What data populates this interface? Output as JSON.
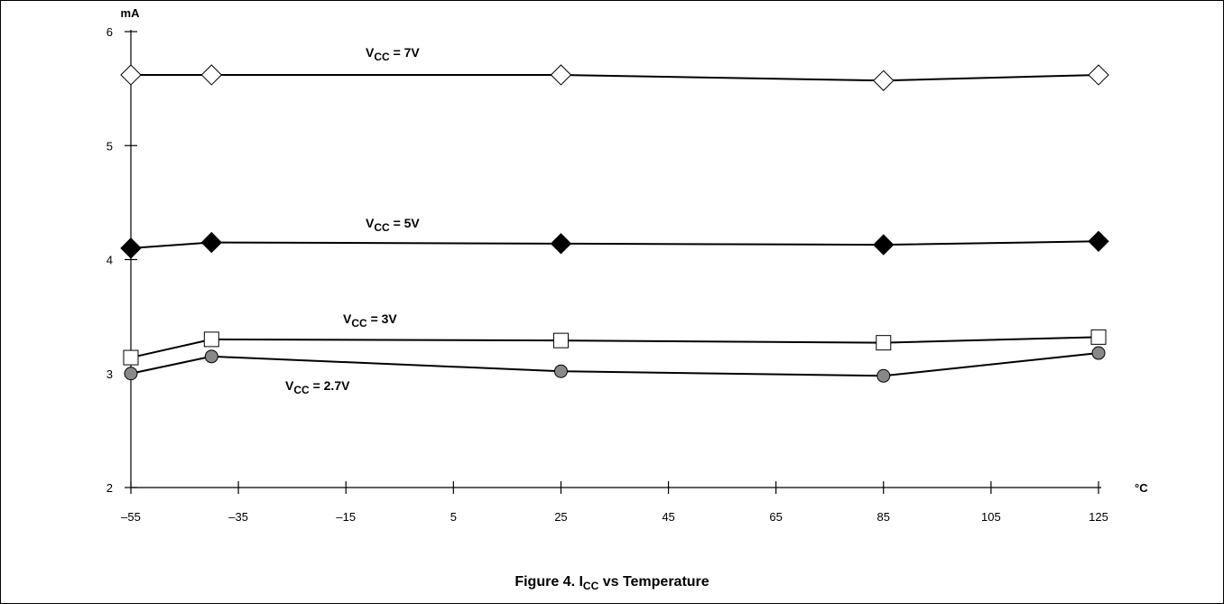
{
  "caption": {
    "prefix": "Figure 4.  I",
    "subscript": "CC",
    "suffix": " vs Temperature"
  },
  "chart_data": {
    "type": "line",
    "ylabel": "mA",
    "xlabel": "°C",
    "xlim": [
      -55,
      125
    ],
    "ylim": [
      2,
      6
    ],
    "x_ticks": [
      "–55",
      "–35",
      "–15",
      "5",
      "25",
      "45",
      "65",
      "85",
      "105",
      "125"
    ],
    "y_ticks": [
      "2",
      "3",
      "4",
      "5",
      "6"
    ],
    "grid": false,
    "x": [
      -55,
      -40,
      25,
      85,
      125
    ],
    "series": [
      {
        "name": "VCC = 7V",
        "label": {
          "main": "V",
          "sub": "CC",
          "rest": " = 7V"
        },
        "marker": "diamond-open",
        "values": [
          5.62,
          5.62,
          5.62,
          5.57,
          5.62
        ]
      },
      {
        "name": "VCC = 5V",
        "label": {
          "main": "V",
          "sub": "CC",
          "rest": " = 5V"
        },
        "marker": "diamond-filled",
        "values": [
          4.1,
          4.15,
          4.14,
          4.13,
          4.16
        ]
      },
      {
        "name": "VCC = 3V",
        "label": {
          "main": "V",
          "sub": "CC",
          "rest": " = 3V"
        },
        "marker": "square-open",
        "values": [
          3.14,
          3.3,
          3.29,
          3.27,
          3.32
        ]
      },
      {
        "name": "VCC = 2.7V",
        "label": {
          "main": "V",
          "sub": "CC",
          "rest": " = 2.7V"
        },
        "marker": "circle-gray",
        "values": [
          3.0,
          3.15,
          3.02,
          2.98,
          3.18
        ]
      }
    ]
  }
}
